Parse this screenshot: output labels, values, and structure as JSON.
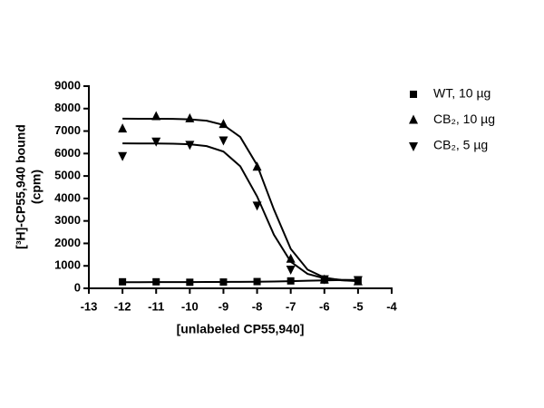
{
  "chart_data": {
    "type": "scatter",
    "xlabel": "[unlabeled CP55,940]",
    "ylabel": [
      "[³H]-CP55,940 bound",
      "(cpm)"
    ],
    "x": [
      -12,
      -11,
      -10,
      -9,
      -8,
      -7,
      -6,
      -5
    ],
    "curve_x": [
      -12,
      -11.5,
      -11,
      -10.5,
      -10,
      -9.5,
      -9,
      -8.5,
      -8,
      -7.5,
      -7,
      -6.5,
      -6,
      -5.5,
      -5
    ],
    "series": [
      {
        "name": "WT, 10 µg",
        "marker": "square",
        "color": "#000000",
        "values": [
          290,
          290,
          270,
          280,
          300,
          330,
          370,
          380
        ],
        "curve": [
          275,
          275,
          276,
          277,
          278,
          280,
          283,
          288,
          295,
          305,
          320,
          338,
          355,
          367,
          375
        ]
      },
      {
        "name": "CB₂, 10 µg",
        "marker": "triangle-up",
        "color": "#000000",
        "values": [
          7100,
          7650,
          7550,
          7300,
          5400,
          1300,
          380,
          300
        ],
        "curve": [
          7550,
          7549,
          7547,
          7541,
          7521,
          7460,
          7272,
          6738,
          5486,
          3509,
          1756,
          833,
          478,
          357,
          318
        ]
      },
      {
        "name": "CB₂, 5 µg",
        "marker": "triangle-down",
        "color": "#000000",
        "values": [
          5900,
          6550,
          6400,
          6600,
          3700,
          850,
          420,
          380
        ],
        "curve": [
          6450,
          6449,
          6446,
          6438,
          6412,
          6330,
          6089,
          5433,
          4090,
          2387,
          1184,
          641,
          445,
          380,
          360
        ]
      }
    ],
    "xlim": [
      -13,
      -4
    ],
    "xticks": [
      -13,
      -12,
      -11,
      -10,
      -9,
      -8,
      -7,
      -6,
      -5,
      -4
    ],
    "ylim": [
      0,
      9000
    ],
    "yticks": [
      0,
      1000,
      2000,
      3000,
      4000,
      5000,
      6000,
      7000,
      8000,
      9000
    ],
    "legend": "upper right"
  }
}
